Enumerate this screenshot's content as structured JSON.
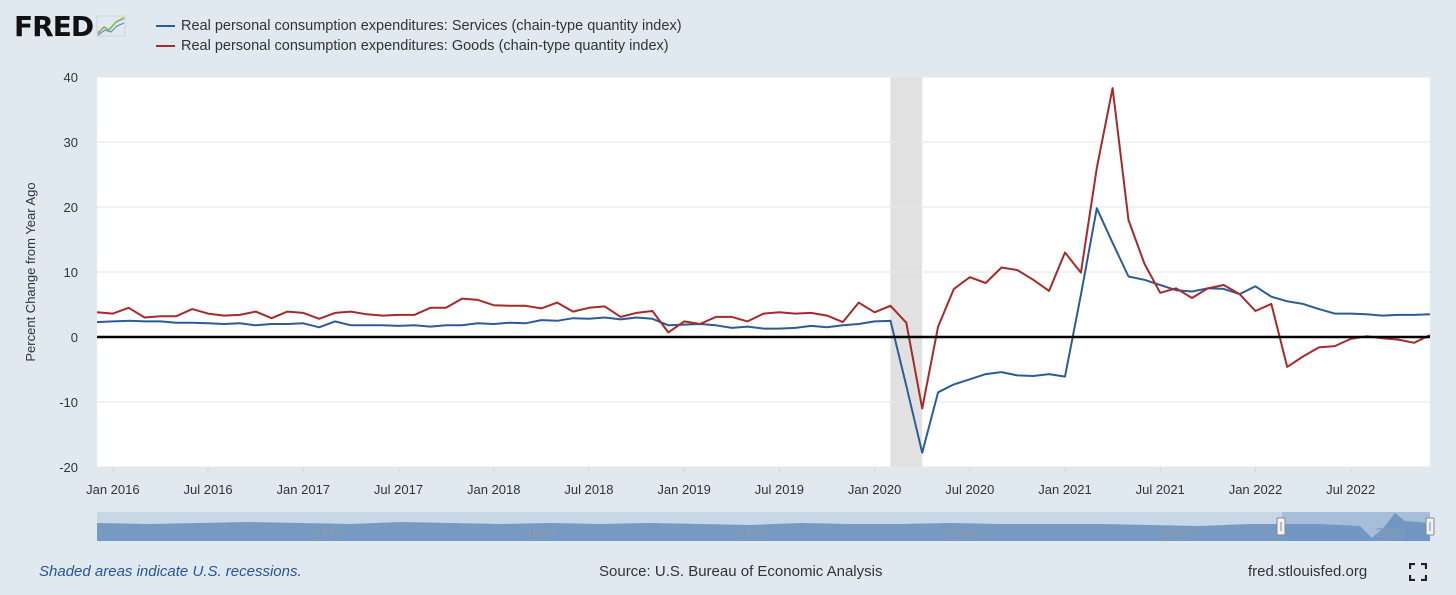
{
  "header": {
    "logo_text": "FRED",
    "logo_mark": "®"
  },
  "legend": [
    {
      "label": "Real personal consumption expenditures: Services (chain-type quantity index)",
      "color": "#2c5c97"
    },
    {
      "label": "Real personal consumption expenditures: Goods (chain-type quantity index)",
      "color": "#a52a2a"
    }
  ],
  "footer": {
    "note": "Shaded areas indicate U.S. recessions.",
    "source": "Source: U.S. Bureau of Economic Analysis",
    "url": "fred.stlouisfed.org"
  },
  "icons": {
    "fullscreen": "expand-icon",
    "logo": "line-graph-icon"
  },
  "navigator": {
    "year_labels": [
      "1970",
      "1980",
      "1990",
      "2000",
      "2010",
      "2020"
    ]
  },
  "chart_data": {
    "type": "line",
    "ylabel": "Percent Change from Year Ago",
    "ylim": [
      -20,
      40
    ],
    "yticks": [
      40,
      30,
      20,
      10,
      0,
      -10,
      -20
    ],
    "xticks": [
      {
        "label": "Jan 2016",
        "date": "2016-01"
      },
      {
        "label": "Jul 2016",
        "date": "2016-07"
      },
      {
        "label": "Jan 2017",
        "date": "2017-01"
      },
      {
        "label": "Jul 2017",
        "date": "2017-07"
      },
      {
        "label": "Jan 2018",
        "date": "2018-01"
      },
      {
        "label": "Jul 2018",
        "date": "2018-07"
      },
      {
        "label": "Jan 2019",
        "date": "2019-01"
      },
      {
        "label": "Jul 2019",
        "date": "2019-07"
      },
      {
        "label": "Jan 2020",
        "date": "2020-01"
      },
      {
        "label": "Jul 2020",
        "date": "2020-07"
      },
      {
        "label": "Jan 2021",
        "date": "2021-01"
      },
      {
        "label": "Jul 2021",
        "date": "2021-07"
      },
      {
        "label": "Jan 2022",
        "date": "2022-01"
      },
      {
        "label": "Jul 2022",
        "date": "2022-07"
      }
    ],
    "xrange": [
      "2015-12",
      "2022-12"
    ],
    "recession": {
      "start": "2020-02",
      "end": "2020-04"
    },
    "grid": true,
    "legend_position": "top-left",
    "x": [
      "2015-12",
      "2016-01",
      "2016-02",
      "2016-03",
      "2016-04",
      "2016-05",
      "2016-06",
      "2016-07",
      "2016-08",
      "2016-09",
      "2016-10",
      "2016-11",
      "2016-12",
      "2017-01",
      "2017-02",
      "2017-03",
      "2017-04",
      "2017-05",
      "2017-06",
      "2017-07",
      "2017-08",
      "2017-09",
      "2017-10",
      "2017-11",
      "2017-12",
      "2018-01",
      "2018-02",
      "2018-03",
      "2018-04",
      "2018-05",
      "2018-06",
      "2018-07",
      "2018-08",
      "2018-09",
      "2018-10",
      "2018-11",
      "2018-12",
      "2019-01",
      "2019-02",
      "2019-03",
      "2019-04",
      "2019-05",
      "2019-06",
      "2019-07",
      "2019-08",
      "2019-09",
      "2019-10",
      "2019-11",
      "2019-12",
      "2020-01",
      "2020-02",
      "2020-03",
      "2020-04",
      "2020-05",
      "2020-06",
      "2020-07",
      "2020-08",
      "2020-09",
      "2020-10",
      "2020-11",
      "2020-12",
      "2021-01",
      "2021-02",
      "2021-03",
      "2021-04",
      "2021-05",
      "2021-06",
      "2021-07",
      "2021-08",
      "2021-09",
      "2021-10",
      "2021-11",
      "2021-12",
      "2022-01",
      "2022-02",
      "2022-03",
      "2022-04",
      "2022-05",
      "2022-06",
      "2022-07",
      "2022-08",
      "2022-09",
      "2022-10",
      "2022-11",
      "2022-12"
    ],
    "series": [
      {
        "name": "Real personal consumption expenditures: Services (chain-type quantity index)",
        "color": "#2c5c97",
        "values": [
          2.3,
          2.4,
          2.5,
          2.4,
          2.4,
          2.2,
          2.2,
          2.1,
          2.0,
          2.1,
          1.8,
          2.0,
          2.0,
          2.1,
          1.5,
          2.4,
          1.8,
          1.8,
          1.8,
          1.7,
          1.8,
          1.6,
          1.8,
          1.8,
          2.1,
          2.0,
          2.2,
          2.1,
          2.6,
          2.5,
          2.9,
          2.8,
          3.0,
          2.7,
          3.0,
          2.8,
          1.8,
          1.9,
          2.0,
          1.8,
          1.4,
          1.6,
          1.3,
          1.3,
          1.4,
          1.7,
          1.5,
          1.8,
          2.0,
          2.4,
          2.5,
          -7.5,
          -17.8,
          -8.5,
          -7.3,
          -6.5,
          -5.7,
          -5.4,
          -5.9,
          -6.0,
          -5.7,
          -6.1,
          6.5,
          19.8,
          14.5,
          9.3,
          8.8,
          8.0,
          7.2,
          7.0,
          7.5,
          7.4,
          6.6,
          7.8,
          6.2,
          5.5,
          5.1,
          4.3,
          3.6,
          3.6,
          3.5,
          3.3,
          3.4,
          3.4,
          3.5
        ]
      },
      {
        "name": "Real personal consumption expenditures: Goods (chain-type quantity index)",
        "color": "#a52a2a",
        "values": [
          3.8,
          3.6,
          4.5,
          3.0,
          3.2,
          3.2,
          4.3,
          3.6,
          3.3,
          3.4,
          3.9,
          2.9,
          3.9,
          3.7,
          2.8,
          3.7,
          3.9,
          3.5,
          3.3,
          3.4,
          3.4,
          4.5,
          4.5,
          5.9,
          5.7,
          4.9,
          4.8,
          4.8,
          4.4,
          5.3,
          3.9,
          4.5,
          4.7,
          3.1,
          3.7,
          4.0,
          0.7,
          2.4,
          2.0,
          3.1,
          3.1,
          2.4,
          3.6,
          3.8,
          3.6,
          3.7,
          3.3,
          2.3,
          5.3,
          3.8,
          4.8,
          2.2,
          -11.0,
          1.6,
          7.4,
          9.2,
          8.3,
          10.7,
          10.3,
          8.8,
          7.1,
          13.0,
          9.9,
          26.0,
          38.3,
          18.0,
          11.3,
          6.8,
          7.5,
          6.0,
          7.5,
          8.0,
          6.6,
          4.0,
          5.1,
          -4.6,
          -3.0,
          -1.6,
          -1.4,
          -0.3,
          0.1,
          -0.2,
          -0.4,
          -0.9,
          0.3
        ]
      }
    ]
  }
}
